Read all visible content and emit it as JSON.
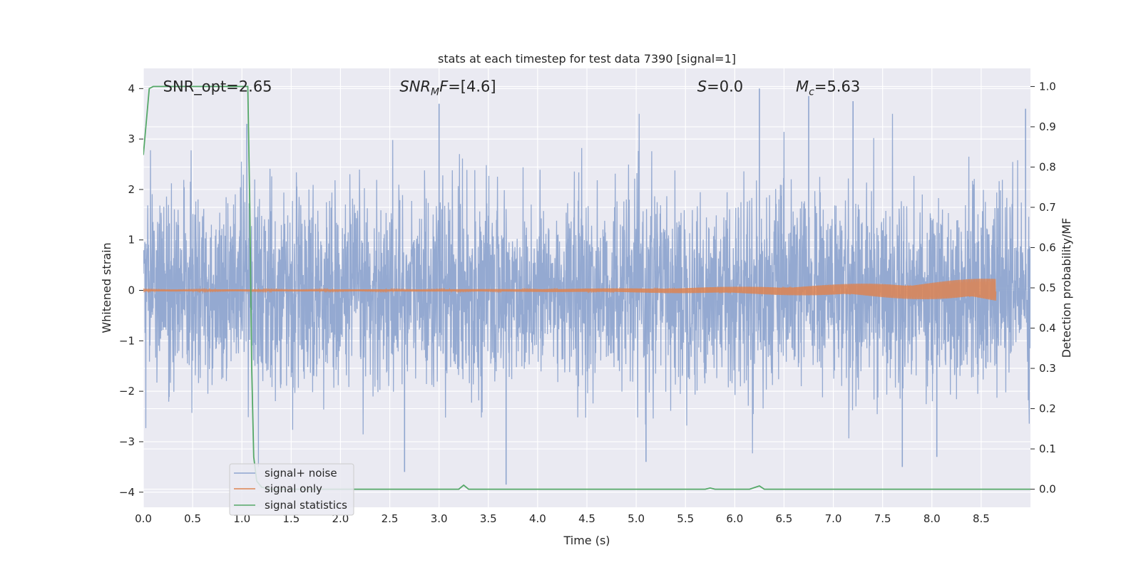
{
  "chart_data": {
    "type": "line",
    "title": "stats at each timestep for test data 7390 [signal=1]",
    "xlabel": "Time (s)",
    "ylabel_left": "Whitened strain",
    "ylabel_right": "Detection probability/MF",
    "xlim": [
      0.0,
      9.0
    ],
    "ylim_left": [
      -4.3,
      4.4
    ],
    "ylim_right": [
      -0.045,
      1.045
    ],
    "x_ticks": [
      0.0,
      0.5,
      1.0,
      1.5,
      2.0,
      2.5,
      3.0,
      3.5,
      4.0,
      4.5,
      5.0,
      5.5,
      6.0,
      6.5,
      7.0,
      7.5,
      8.0,
      8.5
    ],
    "x_tick_labels": [
      "0.0",
      "0.5",
      "1.0",
      "1.5",
      "2.0",
      "2.5",
      "3.0",
      "3.5",
      "4.0",
      "4.5",
      "5.0",
      "5.5",
      "6.0",
      "6.5",
      "7.0",
      "7.5",
      "8.0",
      "8.5"
    ],
    "y_left_ticks": [
      4,
      3,
      2,
      1,
      0,
      -1,
      -2,
      -3,
      -4
    ],
    "y_left_tick_labels": [
      "4",
      "3",
      "2",
      "1",
      "0",
      "−1",
      "−2",
      "−3",
      "−4"
    ],
    "y_right_ticks": [
      1.0,
      0.9,
      0.8,
      0.7,
      0.6,
      0.5,
      0.4,
      0.3,
      0.2,
      0.1,
      0.0
    ],
    "y_right_tick_labels": [
      "1.0",
      "0.9",
      "0.8",
      "0.7",
      "0.6",
      "0.5",
      "0.4",
      "0.3",
      "0.2",
      "0.1",
      "0.0"
    ],
    "grid": true,
    "legend_position": "lower-left",
    "colors": {
      "noise": "#8fa5cf",
      "signal": "#dd8452",
      "stats": "#55a868",
      "background": "#eaeaf2",
      "grid": "#ffffff"
    },
    "annotations": [
      {
        "text": "SNR_opt=2.65",
        "x": 0.2,
        "y": 4.0
      },
      {
        "text": "SNR",
        "sub": "M",
        "tail": "F=[4.6]",
        "italic": true,
        "x": 2.6,
        "y": 4.0
      },
      {
        "text": "S",
        "tail": "=0.0",
        "italic": true,
        "x": 5.62,
        "y": 4.0
      },
      {
        "text": "M",
        "sub": "c",
        "tail": "=5.63",
        "italic": true,
        "x": 6.62,
        "y": 4.0
      }
    ],
    "series": [
      {
        "name": "signal+ noise",
        "axis": "left",
        "style": "dense-noise",
        "time_range": [
          0.0,
          9.0
        ],
        "typical_amplitude": 1.0,
        "envelope_max": 4.0,
        "envelope_min": -3.9,
        "notable_peaks": [
          {
            "x": 1.05,
            "y": 3.3
          },
          {
            "x": 3.0,
            "y": 3.7
          },
          {
            "x": 6.25,
            "y": 4.0
          },
          {
            "x": 6.75,
            "y": 3.85
          },
          {
            "x": 7.2,
            "y": 3.75
          },
          {
            "x": 8.95,
            "y": 3.6
          },
          {
            "x": 3.68,
            "y": -3.85
          },
          {
            "x": 2.65,
            "y": -3.6
          },
          {
            "x": 7.7,
            "y": -3.5
          },
          {
            "x": 8.05,
            "y": -3.3
          },
          {
            "x": 5.1,
            "y": -3.4
          }
        ]
      },
      {
        "name": "signal only",
        "axis": "left",
        "style": "chirp",
        "time_range": [
          0.0,
          8.65
        ],
        "start_amplitude": 0.02,
        "end_amplitude": 0.25
      },
      {
        "name": "signal statistics",
        "axis": "right",
        "style": "line",
        "x": [
          0.0,
          0.06,
          0.1,
          0.3,
          0.6,
          0.9,
          1.06,
          1.08,
          1.1,
          1.12,
          1.15,
          1.2,
          1.3,
          3.2,
          3.25,
          3.3,
          5.7,
          5.75,
          5.8,
          6.15,
          6.25,
          6.3,
          9.0
        ],
        "y": [
          0.83,
          0.995,
          1.0,
          1.0,
          1.0,
          1.0,
          1.0,
          0.7,
          0.3,
          0.08,
          0.02,
          0.005,
          0.0,
          0.0,
          0.01,
          0.0,
          0.0,
          0.003,
          0.0,
          0.0,
          0.008,
          0.0,
          0.0
        ]
      }
    ]
  }
}
